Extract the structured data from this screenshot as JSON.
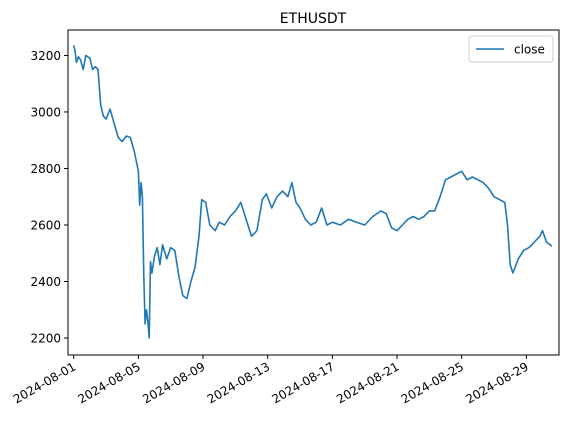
{
  "chart_data": {
    "type": "line",
    "title": "ETHUSDT",
    "xlabel": "",
    "ylabel": "",
    "x_axis": {
      "kind": "date",
      "range": [
        "2024-07-31T15:30",
        "2024-08-31T00:30"
      ],
      "ticks": [
        "2024-08-01",
        "2024-08-05",
        "2024-08-09",
        "2024-08-13",
        "2024-08-17",
        "2024-08-21",
        "2024-08-25",
        "2024-08-29"
      ]
    },
    "y_axis": {
      "range": [
        2140,
        3290
      ],
      "ticks": [
        "2200",
        "2400",
        "2600",
        "2800",
        "3000",
        "3200"
      ]
    },
    "grid": false,
    "legend": {
      "position": "top-right"
    },
    "series": [
      {
        "name": "close",
        "color": "#1f77b4",
        "points": [
          [
            "2024-08-01T00:00",
            3235
          ],
          [
            "2024-08-01T02:00",
            3215
          ],
          [
            "2024-08-01T04:00",
            3175
          ],
          [
            "2024-08-01T07:00",
            3195
          ],
          [
            "2024-08-01T10:00",
            3185
          ],
          [
            "2024-08-01T14:00",
            3150
          ],
          [
            "2024-08-01T18:00",
            3200
          ],
          [
            "2024-08-02T00:00",
            3190
          ],
          [
            "2024-08-02T04:00",
            3150
          ],
          [
            "2024-08-02T08:00",
            3160
          ],
          [
            "2024-08-02T12:00",
            3150
          ],
          [
            "2024-08-02T16:00",
            3025
          ],
          [
            "2024-08-02T20:00",
            2985
          ],
          [
            "2024-08-03T00:00",
            2975
          ],
          [
            "2024-08-03T06:00",
            3010
          ],
          [
            "2024-08-03T12:00",
            2960
          ],
          [
            "2024-08-03T18:00",
            2910
          ],
          [
            "2024-08-04T00:00",
            2895
          ],
          [
            "2024-08-04T06:00",
            2915
          ],
          [
            "2024-08-04T12:00",
            2910
          ],
          [
            "2024-08-04T18:00",
            2860
          ],
          [
            "2024-08-05T00:00",
            2790
          ],
          [
            "2024-08-05T02:00",
            2670
          ],
          [
            "2024-08-05T04:00",
            2750
          ],
          [
            "2024-08-05T06:00",
            2700
          ],
          [
            "2024-08-05T08:00",
            2420
          ],
          [
            "2024-08-05T10:00",
            2250
          ],
          [
            "2024-08-05T12:00",
            2300
          ],
          [
            "2024-08-05T14:00",
            2260
          ],
          [
            "2024-08-05T16:00",
            2200
          ],
          [
            "2024-08-05T18:00",
            2470
          ],
          [
            "2024-08-05T20:00",
            2430
          ],
          [
            "2024-08-06T00:00",
            2490
          ],
          [
            "2024-08-06T04:00",
            2520
          ],
          [
            "2024-08-06T08:00",
            2460
          ],
          [
            "2024-08-06T12:00",
            2530
          ],
          [
            "2024-08-06T18:00",
            2480
          ],
          [
            "2024-08-07T00:00",
            2520
          ],
          [
            "2024-08-07T06:00",
            2510
          ],
          [
            "2024-08-07T12:00",
            2420
          ],
          [
            "2024-08-07T18:00",
            2350
          ],
          [
            "2024-08-08T00:00",
            2340
          ],
          [
            "2024-08-08T06:00",
            2400
          ],
          [
            "2024-08-08T12:00",
            2450
          ],
          [
            "2024-08-08T18:00",
            2560
          ],
          [
            "2024-08-08T22:00",
            2690
          ],
          [
            "2024-08-09T04:00",
            2680
          ],
          [
            "2024-08-09T10:00",
            2600
          ],
          [
            "2024-08-09T18:00",
            2580
          ],
          [
            "2024-08-10T00:00",
            2610
          ],
          [
            "2024-08-10T08:00",
            2600
          ],
          [
            "2024-08-10T16:00",
            2630
          ],
          [
            "2024-08-11T00:00",
            2650
          ],
          [
            "2024-08-11T08:00",
            2680
          ],
          [
            "2024-08-11T16:00",
            2620
          ],
          [
            "2024-08-12T00:00",
            2560
          ],
          [
            "2024-08-12T08:00",
            2580
          ],
          [
            "2024-08-12T16:00",
            2690
          ],
          [
            "2024-08-12T22:00",
            2710
          ],
          [
            "2024-08-13T06:00",
            2660
          ],
          [
            "2024-08-13T14:00",
            2700
          ],
          [
            "2024-08-13T22:00",
            2720
          ],
          [
            "2024-08-14T06:00",
            2700
          ],
          [
            "2024-08-14T12:00",
            2750
          ],
          [
            "2024-08-14T18:00",
            2680
          ],
          [
            "2024-08-15T00:00",
            2660
          ],
          [
            "2024-08-15T08:00",
            2620
          ],
          [
            "2024-08-15T16:00",
            2600
          ],
          [
            "2024-08-16T00:00",
            2610
          ],
          [
            "2024-08-16T08:00",
            2660
          ],
          [
            "2024-08-16T16:00",
            2600
          ],
          [
            "2024-08-17T00:00",
            2610
          ],
          [
            "2024-08-17T12:00",
            2600
          ],
          [
            "2024-08-18T00:00",
            2620
          ],
          [
            "2024-08-18T12:00",
            2610
          ],
          [
            "2024-08-19T00:00",
            2600
          ],
          [
            "2024-08-19T12:00",
            2630
          ],
          [
            "2024-08-20T00:00",
            2650
          ],
          [
            "2024-08-20T08:00",
            2640
          ],
          [
            "2024-08-20T16:00",
            2590
          ],
          [
            "2024-08-21T00:00",
            2580
          ],
          [
            "2024-08-21T08:00",
            2600
          ],
          [
            "2024-08-21T16:00",
            2620
          ],
          [
            "2024-08-22T00:00",
            2630
          ],
          [
            "2024-08-22T08:00",
            2620
          ],
          [
            "2024-08-22T16:00",
            2630
          ],
          [
            "2024-08-23T00:00",
            2650
          ],
          [
            "2024-08-23T08:00",
            2650
          ],
          [
            "2024-08-23T16:00",
            2700
          ],
          [
            "2024-08-24T00:00",
            2760
          ],
          [
            "2024-08-24T08:00",
            2770
          ],
          [
            "2024-08-24T16:00",
            2780
          ],
          [
            "2024-08-25T00:00",
            2790
          ],
          [
            "2024-08-25T08:00",
            2760
          ],
          [
            "2024-08-25T16:00",
            2770
          ],
          [
            "2024-08-26T00:00",
            2760
          ],
          [
            "2024-08-26T08:00",
            2750
          ],
          [
            "2024-08-26T16:00",
            2730
          ],
          [
            "2024-08-27T00:00",
            2700
          ],
          [
            "2024-08-27T08:00",
            2690
          ],
          [
            "2024-08-27T16:00",
            2680
          ],
          [
            "2024-08-27T20:00",
            2600
          ],
          [
            "2024-08-28T00:00",
            2460
          ],
          [
            "2024-08-28T04:00",
            2430
          ],
          [
            "2024-08-28T12:00",
            2480
          ],
          [
            "2024-08-28T20:00",
            2510
          ],
          [
            "2024-08-29T04:00",
            2520
          ],
          [
            "2024-08-29T12:00",
            2540
          ],
          [
            "2024-08-29T20:00",
            2560
          ],
          [
            "2024-08-30T00:00",
            2580
          ],
          [
            "2024-08-30T06:00",
            2540
          ],
          [
            "2024-08-30T14:00",
            2525
          ]
        ]
      }
    ]
  }
}
